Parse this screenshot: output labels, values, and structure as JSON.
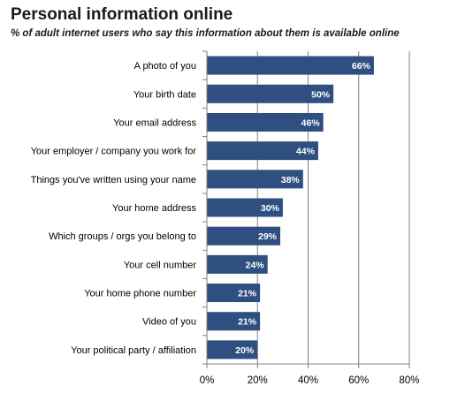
{
  "title": "Personal information online",
  "subtitle": "% of adult internet users who say this information about them is available online",
  "colors": {
    "bar": "#2e4f7f",
    "grid": "#808080",
    "axis": "#808080"
  },
  "chart_data": {
    "type": "bar",
    "orientation": "horizontal",
    "title": "Personal information online",
    "subtitle": "% of adult internet users who say this information about them is available online",
    "categories": [
      "A photo of you",
      "Your birth date",
      "Your email address",
      "Your employer / company you work for",
      "Things you've written using your name",
      "Your home address",
      "Which groups / orgs you belong to",
      "Your cell number",
      "Your home phone number",
      "Video of you",
      "Your political party / affiliation"
    ],
    "values": [
      66,
      50,
      46,
      44,
      38,
      30,
      29,
      24,
      21,
      21,
      20
    ],
    "value_labels": [
      "66%",
      "50%",
      "46%",
      "44%",
      "38%",
      "30%",
      "29%",
      "24%",
      "21%",
      "21%",
      "20%"
    ],
    "xlim": [
      0,
      80
    ],
    "xticks": [
      0,
      20,
      40,
      60,
      80
    ],
    "xtick_labels": [
      "0%",
      "20%",
      "40%",
      "60%",
      "80%"
    ],
    "grid": true,
    "legend": "none"
  }
}
